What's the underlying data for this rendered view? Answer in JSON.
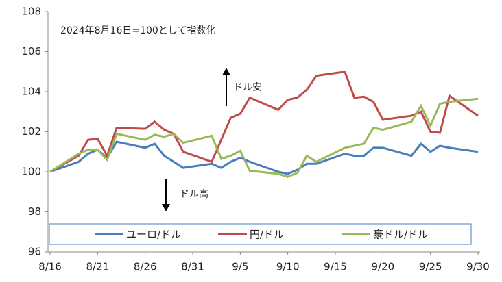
{
  "chart_data": {
    "type": "line",
    "annotations": [
      "2024年8月16日=100として指数化",
      "ドル安",
      "ドル高"
    ],
    "x": [
      "8/16",
      "8/19",
      "8/20",
      "8/21",
      "8/22",
      "8/23",
      "8/26",
      "8/27",
      "8/28",
      "8/29",
      "8/30",
      "9/2",
      "9/3",
      "9/4",
      "9/5",
      "9/6",
      "9/9",
      "9/10",
      "9/11",
      "9/12",
      "9/13",
      "9/16",
      "9/17",
      "9/18",
      "9/19",
      "9/20",
      "9/23",
      "9/24",
      "9/25",
      "9/26",
      "9/27",
      "9/30"
    ],
    "series": [
      {
        "name": "ユーロ/ドル",
        "color": "#4a7ebb",
        "values": [
          100,
          100.5,
          100.9,
          101.1,
          100.7,
          101.5,
          101.2,
          101.4,
          100.8,
          100.5,
          100.2,
          100.4,
          100.2,
          100.5,
          100.7,
          100.5,
          100.0,
          99.9,
          100.1,
          100.4,
          100.4,
          100.9,
          100.8,
          100.8,
          101.2,
          101.2,
          100.8,
          101.4,
          101.0,
          101.3,
          101.2,
          101.0
        ]
      },
      {
        "name": "円/ドル",
        "color": "#be4b48",
        "values": [
          100,
          100.8,
          101.6,
          101.65,
          100.8,
          102.2,
          102.15,
          102.5,
          102.1,
          101.9,
          101.0,
          100.5,
          101.6,
          102.7,
          102.9,
          103.7,
          103.1,
          103.6,
          103.7,
          104.1,
          104.8,
          105.0,
          103.7,
          103.75,
          103.5,
          102.6,
          102.8,
          103.0,
          102.0,
          101.95,
          103.8,
          102.8
        ]
      },
      {
        "name": "豪ドル/ドル",
        "color": "#98b954",
        "values": [
          100,
          100.9,
          101.1,
          101.1,
          100.6,
          101.9,
          101.6,
          101.85,
          101.75,
          101.9,
          101.45,
          101.8,
          100.65,
          100.8,
          101.05,
          100.05,
          99.9,
          99.75,
          99.95,
          100.8,
          100.5,
          101.2,
          101.3,
          101.4,
          102.2,
          102.1,
          102.5,
          103.3,
          102.3,
          103.4,
          103.5,
          103.65
        ]
      }
    ],
    "xticks": [
      "8/16",
      "8/21",
      "8/26",
      "8/31",
      "9/5",
      "9/10",
      "9/15",
      "9/20",
      "9/25",
      "9/30"
    ],
    "ylim": [
      96,
      108
    ],
    "yticks": [
      96,
      98,
      100,
      102,
      104,
      106,
      108
    ],
    "legend": "bottom"
  }
}
